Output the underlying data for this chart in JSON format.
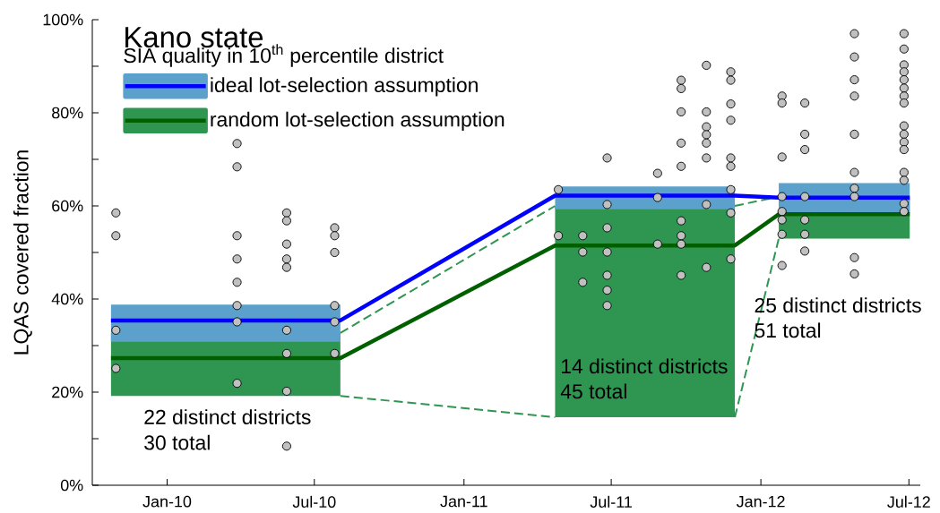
{
  "chart_data": {
    "type": "line",
    "title": "Kano state",
    "subtitle": "SIA quality in 10$^{th}$ percentile district",
    "ylabel": "LQAS covered fraction",
    "xlim": [
      "2009-10-01",
      "2012-07-15"
    ],
    "xticks": [
      {
        "value": "2010-01-01",
        "label": "Jan-10"
      },
      {
        "value": "2010-07-01",
        "label": "Jul-10"
      },
      {
        "value": "2011-01-01",
        "label": "Jan-11"
      },
      {
        "value": "2011-07-01",
        "label": "Jul-11"
      },
      {
        "value": "2012-01-01",
        "label": "Jan-12"
      },
      {
        "value": "2012-07-01",
        "label": "Jul-12"
      }
    ],
    "ylim": [
      0,
      100
    ],
    "yticks": [
      {
        "value": 0,
        "label": "0%"
      },
      {
        "value": 10,
        "label": null
      },
      {
        "value": 20,
        "label": "20%"
      },
      {
        "value": 30,
        "label": null
      },
      {
        "value": 40,
        "label": "40%"
      },
      {
        "value": 50,
        "label": null
      },
      {
        "value": 60,
        "label": "60%"
      },
      {
        "value": 70,
        "label": null
      },
      {
        "value": 80,
        "label": "80%"
      },
      {
        "value": 90,
        "label": null
      },
      {
        "value": 100,
        "label": "100%"
      }
    ],
    "legend": "top left",
    "series": [
      {
        "type": "area",
        "color": "#2e9651",
        "x": [
          "2009-10-24",
          "2010-08-02"
        ],
        "values": [
          null,
          null
        ],
        "lower": [
          19.2,
          19.2
        ],
        "upper": [
          32.7,
          32.7
        ]
      },
      {
        "type": "area",
        "color": "#5ba1cb",
        "x": [
          "2009-10-24",
          "2010-08-02"
        ],
        "values": [
          null,
          null
        ],
        "lower": [
          30.8,
          30.8
        ],
        "upper": [
          38.8,
          38.8
        ]
      },
      {
        "type": "area",
        "color": "#2e9651",
        "x": [
          "2011-04-23",
          "2011-11-30"
        ],
        "values": [
          null,
          null
        ],
        "lower": [
          14.6,
          14.6
        ],
        "upper": [
          60.0,
          60.0
        ]
      },
      {
        "type": "area",
        "color": "#5ba1cb",
        "x": [
          "2011-04-23",
          "2011-11-30"
        ],
        "values": [
          null,
          null
        ],
        "lower": [
          59.3,
          59.3
        ],
        "upper": [
          64.2,
          64.2
        ]
      },
      {
        "type": "area",
        "color": "#2e9651",
        "x": [
          "2012-01-23",
          "2012-07-02"
        ],
        "values": [
          null,
          null
        ],
        "lower": [
          53.0,
          53.0
        ],
        "upper": [
          62.0,
          62.0
        ]
      },
      {
        "type": "area",
        "color": "#5ba1cb",
        "x": [
          "2012-01-23",
          "2012-07-02"
        ],
        "values": [
          null,
          null
        ],
        "lower": [
          58.4,
          58.4
        ],
        "upper": [
          64.9,
          64.9
        ]
      },
      {
        "line_style": "dashed",
        "color": "#2e9651",
        "x": [
          "2010-08-02",
          "2011-04-23"
        ],
        "values": [
          32.7,
          60.0
        ]
      },
      {
        "line_style": "dashed",
        "color": "#2e9651",
        "x": [
          "2010-08-02",
          "2011-04-23"
        ],
        "values": [
          19.2,
          14.6
        ]
      },
      {
        "line_style": "dashed",
        "color": "#2e9651",
        "x": [
          "2011-11-30",
          "2012-01-23"
        ],
        "values": [
          60.0,
          62.0
        ]
      },
      {
        "line_style": "dashed",
        "color": "#2e9651",
        "x": [
          "2011-11-30",
          "2012-01-23"
        ],
        "values": [
          14.6,
          53.0
        ]
      },
      {
        "name": "ideal lot-selection assumption",
        "color": "#0000ff",
        "x": [
          "2009-10-24",
          "2010-08-02",
          "2011-04-23",
          "2011-11-30",
          "2012-01-23",
          "2012-07-02"
        ],
        "values": [
          35.4,
          35.4,
          62.2,
          62.2,
          61.8,
          61.8
        ]
      },
      {
        "name": "random lot-selection assumption",
        "color": "#006000",
        "x": [
          "2009-10-24",
          "2010-08-02",
          "2011-04-23",
          "2011-11-30",
          "2012-01-23",
          "2012-07-02"
        ],
        "values": [
          27.3,
          27.3,
          51.5,
          51.5,
          58.2,
          58.2
        ]
      },
      {
        "type": "scatter",
        "marker": "circle",
        "color": "#c0c0c0",
        "x": [
          "2009-10-30",
          "2009-10-30",
          "2009-10-30",
          "2009-10-30",
          "2010-03-28",
          "2010-03-28",
          "2010-03-28",
          "2010-03-28",
          "2010-03-28",
          "2010-03-28",
          "2010-03-28",
          "2010-03-28",
          "2010-05-28",
          "2010-05-28",
          "2010-05-28",
          "2010-05-28",
          "2010-05-28",
          "2010-05-28",
          "2010-05-28",
          "2010-05-28",
          "2010-05-28",
          "2010-07-26",
          "2010-07-26",
          "2010-07-26",
          "2010-07-26",
          "2010-07-26",
          "2010-07-26",
          "2011-04-27",
          "2011-04-27",
          "2011-05-27",
          "2011-05-27",
          "2011-05-27",
          "2011-06-26",
          "2011-06-26",
          "2011-06-26",
          "2011-06-26",
          "2011-06-26",
          "2011-06-26",
          "2011-06-26",
          "2011-08-27",
          "2011-08-27",
          "2011-08-27",
          "2011-09-25",
          "2011-09-25",
          "2011-09-25",
          "2011-09-25",
          "2011-09-25",
          "2011-09-25",
          "2011-09-25",
          "2011-09-25",
          "2011-09-25",
          "2011-10-26",
          "2011-10-26",
          "2011-10-26",
          "2011-10-26",
          "2011-10-26",
          "2011-10-26",
          "2011-10-26",
          "2011-10-26",
          "2011-11-25",
          "2011-11-25",
          "2011-11-25",
          "2011-11-25",
          "2011-11-25",
          "2011-11-25",
          "2011-11-25",
          "2011-11-25",
          "2011-11-25",
          "2012-01-27",
          "2012-01-27",
          "2012-01-27",
          "2012-01-27",
          "2012-01-27",
          "2012-01-27",
          "2012-01-27",
          "2012-01-27",
          "2012-02-24",
          "2012-02-24",
          "2012-02-24",
          "2012-02-24",
          "2012-02-24",
          "2012-02-24",
          "2012-02-24",
          "2012-04-25",
          "2012-04-25",
          "2012-04-25",
          "2012-04-25",
          "2012-04-25",
          "2012-04-25",
          "2012-04-25",
          "2012-04-25",
          "2012-04-25",
          "2012-04-25",
          "2012-06-25",
          "2012-06-25",
          "2012-06-25",
          "2012-06-25",
          "2012-06-25",
          "2012-06-25",
          "2012-06-25",
          "2012-06-25",
          "2012-06-25",
          "2012-06-25",
          "2012-06-25",
          "2012-06-25",
          "2012-06-25",
          "2012-06-25",
          "2012-06-25",
          "2012-06-25"
        ],
        "values": [
          58.5,
          53.6,
          33.3,
          25.1,
          73.4,
          68.4,
          53.6,
          48.6,
          43.6,
          38.6,
          35.1,
          21.9,
          58.5,
          56.8,
          51.8,
          48.6,
          46.8,
          33.3,
          28.3,
          20.2,
          8.4,
          55.3,
          53.6,
          50.0,
          38.6,
          35.1,
          28.3,
          63.5,
          53.6,
          53.6,
          50.1,
          43.6,
          70.3,
          60.3,
          55.3,
          50.1,
          45.1,
          41.9,
          38.6,
          67.0,
          61.8,
          51.8,
          87.0,
          85.2,
          80.2,
          73.5,
          68.5,
          56.8,
          53.6,
          51.8,
          45.1,
          90.2,
          80.2,
          77.0,
          75.3,
          73.5,
          70.3,
          60.3,
          46.8,
          88.8,
          87.0,
          81.9,
          78.4,
          70.3,
          68.5,
          63.5,
          58.5,
          48.6,
          83.6,
          82.1,
          70.5,
          62.0,
          58.8,
          57.0,
          53.9,
          47.2,
          82.1,
          75.4,
          72.1,
          62.0,
          57.0,
          53.9,
          50.3,
          97.0,
          92.0,
          87.1,
          83.6,
          75.4,
          67.2,
          63.8,
          62.0,
          48.9,
          45.4,
          97.0,
          93.7,
          90.3,
          88.8,
          87.1,
          85.3,
          83.6,
          82.1,
          77.2,
          75.4,
          73.7,
          72.1,
          67.2,
          65.5,
          60.5,
          58.8
        ]
      }
    ],
    "annotations": [
      "22 distinct districts",
      "30 total",
      "14 distinct districts",
      "45 total",
      "25 distinct districts",
      "51 total"
    ]
  }
}
